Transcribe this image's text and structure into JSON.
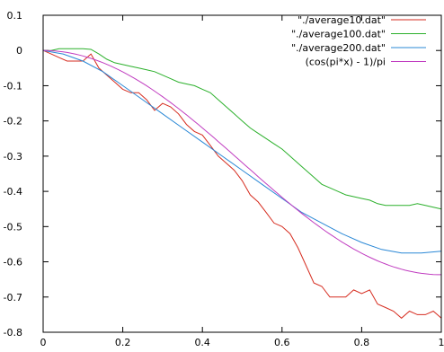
{
  "chart_data": {
    "type": "line",
    "xlim": [
      0,
      1
    ],
    "ylim": [
      -0.8,
      0.1
    ],
    "xticks": [
      0,
      0.2,
      0.4,
      0.6,
      0.8,
      1
    ],
    "xtick_labels": [
      "0",
      "0.2",
      "0.4",
      "0.6",
      "0.8",
      "1"
    ],
    "yticks": [
      0.1,
      0,
      -0.1,
      -0.2,
      -0.3,
      -0.4,
      -0.5,
      -0.6,
      -0.7,
      -0.8
    ],
    "ytick_labels": [
      "0.1",
      "0",
      "-0.1",
      "-0.2",
      "-0.3",
      "-0.4",
      "-0.5",
      "-0.6",
      "-0.7",
      "-0.8"
    ],
    "grid": false,
    "legend_position": "top-right",
    "series": [
      {
        "name": "\"./average10.dat\"",
        "color": "#d62d20",
        "x": [
          0,
          0.02,
          0.04,
          0.06,
          0.08,
          0.1,
          0.12,
          0.14,
          0.16,
          0.18,
          0.2,
          0.22,
          0.24,
          0.26,
          0.28,
          0.3,
          0.32,
          0.34,
          0.36,
          0.38,
          0.4,
          0.42,
          0.44,
          0.46,
          0.48,
          0.5,
          0.52,
          0.54,
          0.56,
          0.58,
          0.6,
          0.62,
          0.64,
          0.66,
          0.68,
          0.7,
          0.72,
          0.74,
          0.76,
          0.78,
          0.8,
          0.82,
          0.84,
          0.86,
          0.88,
          0.9,
          0.92,
          0.94,
          0.96,
          0.98,
          1.0
        ],
        "y": [
          0.0,
          -0.01,
          -0.02,
          -0.03,
          -0.03,
          -0.03,
          -0.01,
          -0.05,
          -0.07,
          -0.09,
          -0.11,
          -0.12,
          -0.12,
          -0.14,
          -0.17,
          -0.15,
          -0.16,
          -0.18,
          -0.21,
          -0.23,
          -0.24,
          -0.27,
          -0.3,
          -0.32,
          -0.34,
          -0.37,
          -0.41,
          -0.43,
          -0.46,
          -0.49,
          -0.5,
          -0.52,
          -0.56,
          -0.61,
          -0.66,
          -0.67,
          -0.7,
          -0.7,
          -0.7,
          -0.68,
          -0.69,
          -0.68,
          -0.72,
          -0.73,
          -0.74,
          -0.76,
          -0.74,
          -0.75,
          -0.75,
          -0.74,
          -0.76
        ]
      },
      {
        "name": "\"./average100.dat\"",
        "color": "#2bb02b",
        "x": [
          0,
          0.02,
          0.04,
          0.06,
          0.08,
          0.1,
          0.12,
          0.14,
          0.16,
          0.18,
          0.2,
          0.22,
          0.24,
          0.26,
          0.28,
          0.3,
          0.32,
          0.34,
          0.36,
          0.38,
          0.4,
          0.42,
          0.44,
          0.46,
          0.48,
          0.5,
          0.52,
          0.54,
          0.56,
          0.58,
          0.6,
          0.62,
          0.64,
          0.66,
          0.68,
          0.7,
          0.72,
          0.74,
          0.76,
          0.78,
          0.8,
          0.82,
          0.84,
          0.86,
          0.88,
          0.9,
          0.92,
          0.94,
          0.96,
          0.98,
          1.0
        ],
        "y": [
          0.0,
          0.0,
          0.005,
          0.005,
          0.005,
          0.005,
          0.003,
          -0.01,
          -0.025,
          -0.035,
          -0.04,
          -0.045,
          -0.05,
          -0.055,
          -0.06,
          -0.07,
          -0.08,
          -0.09,
          -0.095,
          -0.1,
          -0.11,
          -0.12,
          -0.14,
          -0.16,
          -0.18,
          -0.2,
          -0.22,
          -0.235,
          -0.25,
          -0.265,
          -0.28,
          -0.3,
          -0.32,
          -0.34,
          -0.36,
          -0.38,
          -0.39,
          -0.4,
          -0.41,
          -0.415,
          -0.42,
          -0.425,
          -0.435,
          -0.44,
          -0.44,
          -0.44,
          -0.44,
          -0.435,
          -0.44,
          -0.445,
          -0.45
        ]
      },
      {
        "name": "\"./average200.dat\"",
        "color": "#2a88d6",
        "x": [
          0,
          0.05,
          0.1,
          0.15,
          0.2,
          0.25,
          0.3,
          0.35,
          0.4,
          0.45,
          0.5,
          0.55,
          0.6,
          0.65,
          0.7,
          0.75,
          0.8,
          0.85,
          0.9,
          0.95,
          1.0
        ],
        "y": [
          0.0,
          -0.01,
          -0.03,
          -0.06,
          -0.1,
          -0.14,
          -0.18,
          -0.22,
          -0.26,
          -0.3,
          -0.34,
          -0.38,
          -0.42,
          -0.46,
          -0.49,
          -0.52,
          -0.545,
          -0.565,
          -0.575,
          -0.575,
          -0.57
        ]
      },
      {
        "name": "(cos(pi*x) - 1)/pi",
        "color": "#c03cc0",
        "function": "(cos(pi*x) - 1)/pi"
      }
    ]
  }
}
